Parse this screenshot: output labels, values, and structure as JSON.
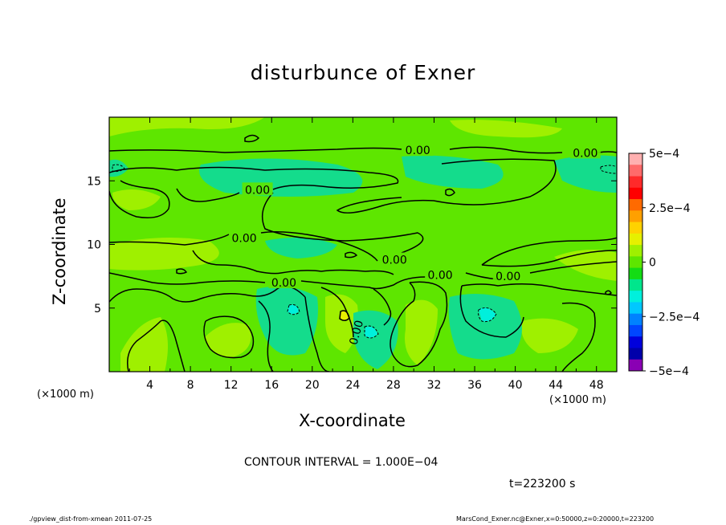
{
  "chart_data": {
    "type": "heatmap",
    "title": "disturbunce of Exner",
    "xlabel": "X-coordinate",
    "ylabel": "Z-coordinate",
    "x_unit": "(×1000 m)",
    "y_unit": "(×1000 m)",
    "xlim": [
      0,
      50
    ],
    "ylim": [
      0,
      20
    ],
    "x_ticks": [
      "4",
      "8",
      "12",
      "16",
      "20",
      "24",
      "28",
      "32",
      "36",
      "40",
      "44",
      "48"
    ],
    "y_ticks": [
      "5",
      "10",
      "15"
    ],
    "x_tick_values": [
      4,
      8,
      12,
      16,
      20,
      24,
      28,
      32,
      36,
      40,
      44,
      48
    ],
    "y_tick_values": [
      5,
      10,
      15
    ],
    "colorbar": {
      "min": -0.0005,
      "max": 0.0005,
      "labels": [
        "5e−4",
        "2.5e−4",
        "0",
        "−2.5e−4",
        "−5e−4"
      ],
      "label_values": [
        0.0005,
        0.00025,
        0,
        -0.00025,
        -0.0005
      ],
      "colors": [
        "#ffb0b0",
        "#ff6a6a",
        "#ff2a2a",
        "#ff0000",
        "#ff6a00",
        "#ffa000",
        "#ffd200",
        "#e6f000",
        "#9ff000",
        "#5ee600",
        "#14dc14",
        "#00e68c",
        "#00f0dc",
        "#00c8ff",
        "#0082ff",
        "#0046ff",
        "#0000dc",
        "#0000aa",
        "#8a00b4"
      ]
    },
    "contour_labels": [
      "0.00",
      "0.00",
      "0.00",
      "0.00",
      "0.00",
      "0.00",
      "0.00",
      "0.00"
    ],
    "contour_interval": "CONTOUR INTERVAL = 1.000E−04"
  },
  "time_label": "t=223200 s",
  "footer": {
    "left": "./gpview_dist-from-xmean  2011-07-25",
    "right": "MarsCond_Exner.nc@Exner,x=0:50000,z=0:20000,t=223200"
  }
}
